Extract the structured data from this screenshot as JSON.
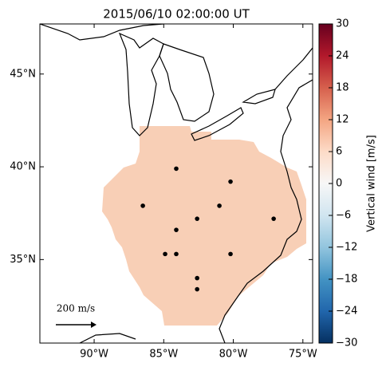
{
  "chart_data": {
    "type": "map",
    "title": "2015/06/10 02:00:00 UT",
    "xlim": [
      -93.9,
      -74.3
    ],
    "ylim": [
      30.5,
      47.7
    ],
    "xticks": [
      {
        "value": -90,
        "label": "90°W"
      },
      {
        "value": -85,
        "label": "85°W"
      },
      {
        "value": -80,
        "label": "80°W"
      },
      {
        "value": -75,
        "label": "75°W"
      }
    ],
    "yticks": [
      {
        "value": 35,
        "label": "35°N"
      },
      {
        "value": 40,
        "label": "40°N"
      },
      {
        "value": 45,
        "label": "45°N"
      }
    ],
    "stations": {
      "x": [
        -84.1,
        -80.2,
        -86.5,
        -81.0,
        -82.6,
        -77.1,
        -84.1,
        -84.9,
        -84.1,
        -80.2,
        -82.6,
        -82.6
      ],
      "y": [
        39.9,
        39.2,
        37.9,
        37.9,
        37.2,
        37.2,
        36.6,
        35.3,
        35.3,
        35.3,
        34.0,
        33.4
      ]
    },
    "scale_label": "200 m/s",
    "colorbar": {
      "label": "Vertical wind [m/s]",
      "lim": [
        -30,
        30
      ],
      "ticks": [
        {
          "value": -30,
          "label": "−30"
        },
        {
          "value": -24,
          "label": "−24"
        },
        {
          "value": -18,
          "label": "−18"
        },
        {
          "value": -12,
          "label": "−12"
        },
        {
          "value": -6,
          "label": "−6"
        },
        0,
        6,
        12,
        18,
        24,
        30
      ],
      "colors": [
        "#053061",
        "#2166ac",
        "#4393c3",
        "#92c5de",
        "#d1e5f0",
        "#f7f7f7",
        "#fddbc7",
        "#f4a582",
        "#d6604d",
        "#b2182b",
        "#67001f"
      ]
    }
  }
}
